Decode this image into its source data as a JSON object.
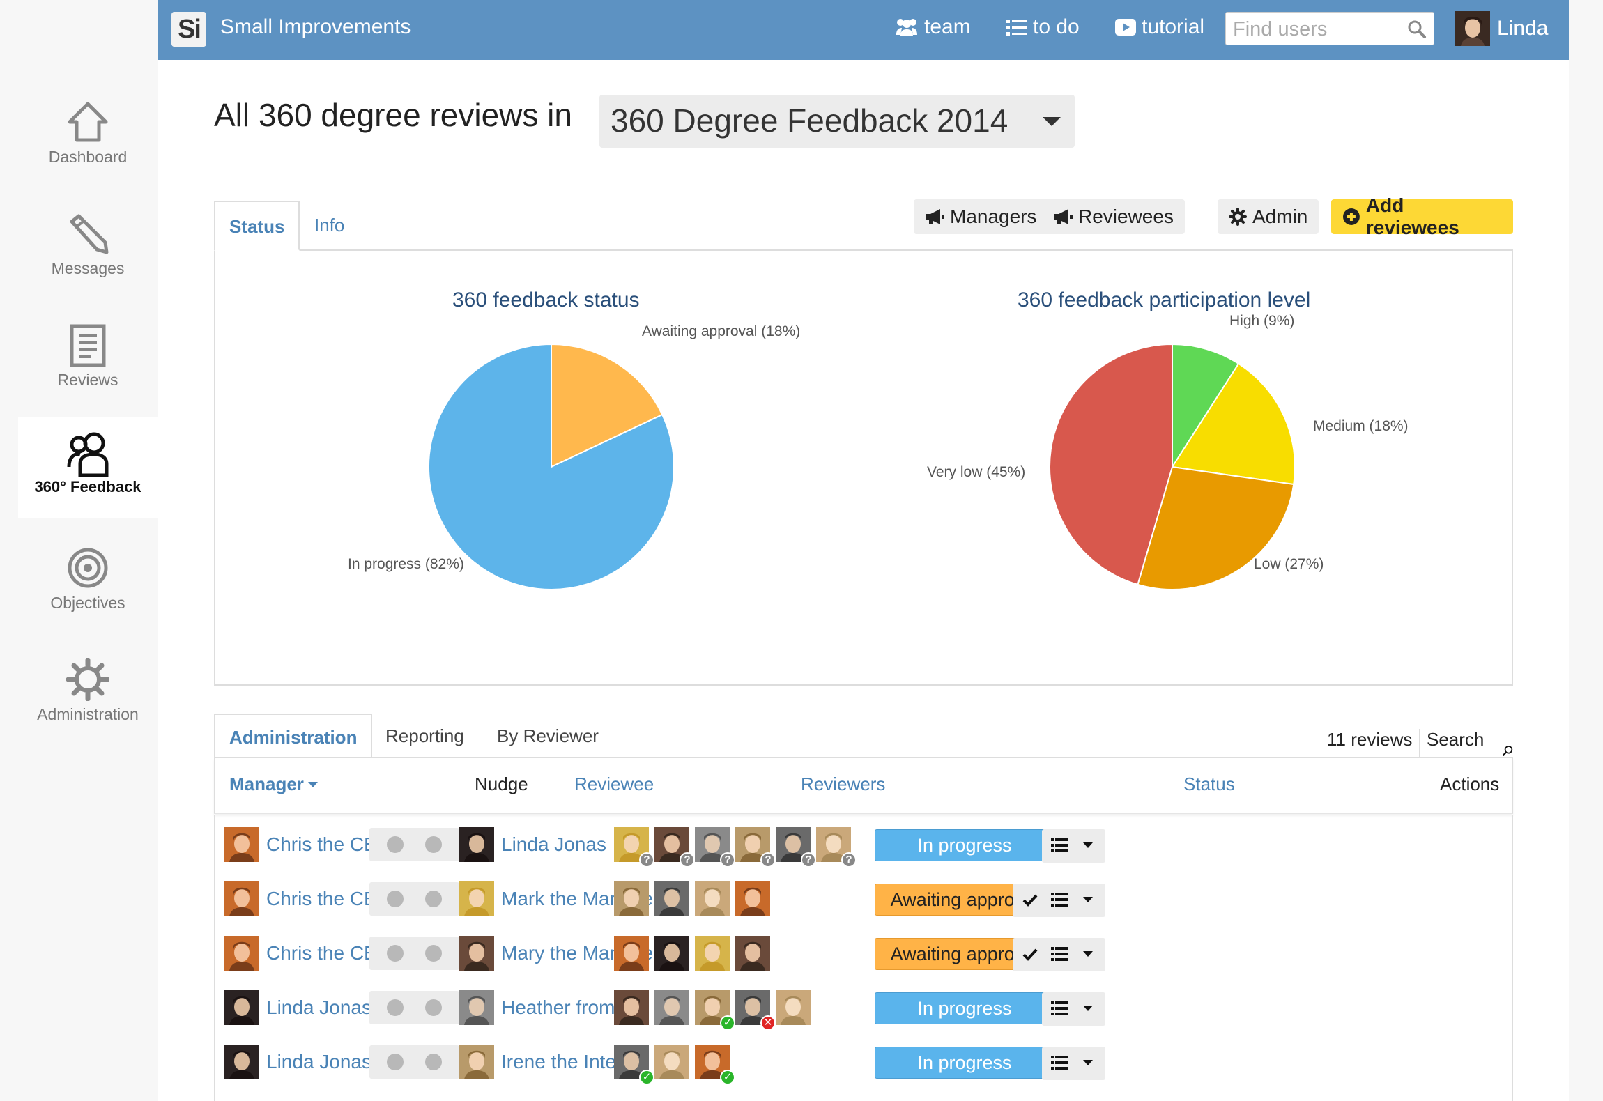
{
  "app": {
    "name": "Small Improvements",
    "logo_text": "Si"
  },
  "topbar": {
    "links": [
      {
        "label": "team",
        "icon": "users-icon"
      },
      {
        "label": "to do",
        "icon": "list-icon"
      },
      {
        "label": "tutorial",
        "icon": "play-icon"
      }
    ],
    "search": {
      "placeholder": "Find users",
      "value": ""
    },
    "user": {
      "name": "Linda"
    }
  },
  "sidebar": {
    "items": [
      {
        "label": "Dashboard",
        "icon": "home-icon",
        "active": false
      },
      {
        "label": "Messages",
        "icon": "pencil-icon",
        "active": false
      },
      {
        "label": "Reviews",
        "icon": "document-icon",
        "active": false
      },
      {
        "label": "360° Feedback",
        "icon": "people-icon",
        "active": true
      },
      {
        "label": "Objectives",
        "icon": "target-icon",
        "active": false
      },
      {
        "label": "Administration",
        "icon": "gear-icon",
        "active": false
      }
    ]
  },
  "page": {
    "heading": "All 360 degree reviews in",
    "cycle": "360 Degree Feedback 2014"
  },
  "top_tabs": {
    "status": "Status",
    "info": "Info"
  },
  "top_actions": {
    "managers": "Managers",
    "reviewees": "Reviewees",
    "admin": "Admin",
    "add_reviewees": "Add reviewees"
  },
  "chart_data": [
    {
      "type": "pie",
      "title": "360 feedback status",
      "categories": [
        "Awaiting approval",
        "In progress"
      ],
      "values": [
        18,
        82
      ],
      "labels": [
        "Awaiting approval (18%)",
        "In progress (82%)"
      ],
      "colors": [
        "#ffb84d",
        "#5db4ea"
      ]
    },
    {
      "type": "pie",
      "title": "360 feedback participation level",
      "categories": [
        "High",
        "Medium",
        "Low",
        "Very low"
      ],
      "values": [
        9,
        18,
        27,
        45
      ],
      "labels": [
        "High (9%)",
        "Medium (18%)",
        "Low (27%)",
        "Very low (45%)"
      ],
      "colors": [
        "#5fd855",
        "#f8dd00",
        "#e89a00",
        "#d8584d"
      ]
    }
  ],
  "admin_tabs": {
    "administration": "Administration",
    "reporting": "Reporting",
    "by_reviewer": "By Reviewer",
    "count": "11 reviews",
    "search": "Search users"
  },
  "table": {
    "headers": {
      "manager": "Manager",
      "nudge": "Nudge",
      "reviewee": "Reviewee",
      "reviewers": "Reviewers",
      "status": "Status",
      "actions": "Actions"
    },
    "rows": [
      {
        "manager": "Chris the CEO",
        "reviewee": "Linda Jonas",
        "reviewers": [
          "q",
          "q",
          "q",
          "q",
          "q",
          "q"
        ],
        "status": "In progress",
        "status_kind": "progress",
        "approve": false
      },
      {
        "manager": "Chris the CEO",
        "reviewee": "Mark the Manager",
        "reviewers": [
          "",
          "",
          "",
          ""
        ],
        "status": "Awaiting approval",
        "status_kind": "awaiting",
        "approve": true
      },
      {
        "manager": "Chris the CEO",
        "reviewee": "Mary the Manager",
        "reviewers": [
          "",
          "",
          "",
          ""
        ],
        "status": "Awaiting approval",
        "status_kind": "awaiting",
        "approve": true
      },
      {
        "manager": "Linda Jonas",
        "reviewee": "Heather from HR",
        "reviewers": [
          "",
          "",
          "ok",
          "no",
          ""
        ],
        "status": "In progress",
        "status_kind": "progress",
        "approve": false
      },
      {
        "manager": "Linda Jonas",
        "reviewee": "Irene the Intern",
        "reviewers": [
          "ok",
          "",
          "ok"
        ],
        "status": "In progress",
        "status_kind": "progress",
        "approve": false
      }
    ]
  }
}
